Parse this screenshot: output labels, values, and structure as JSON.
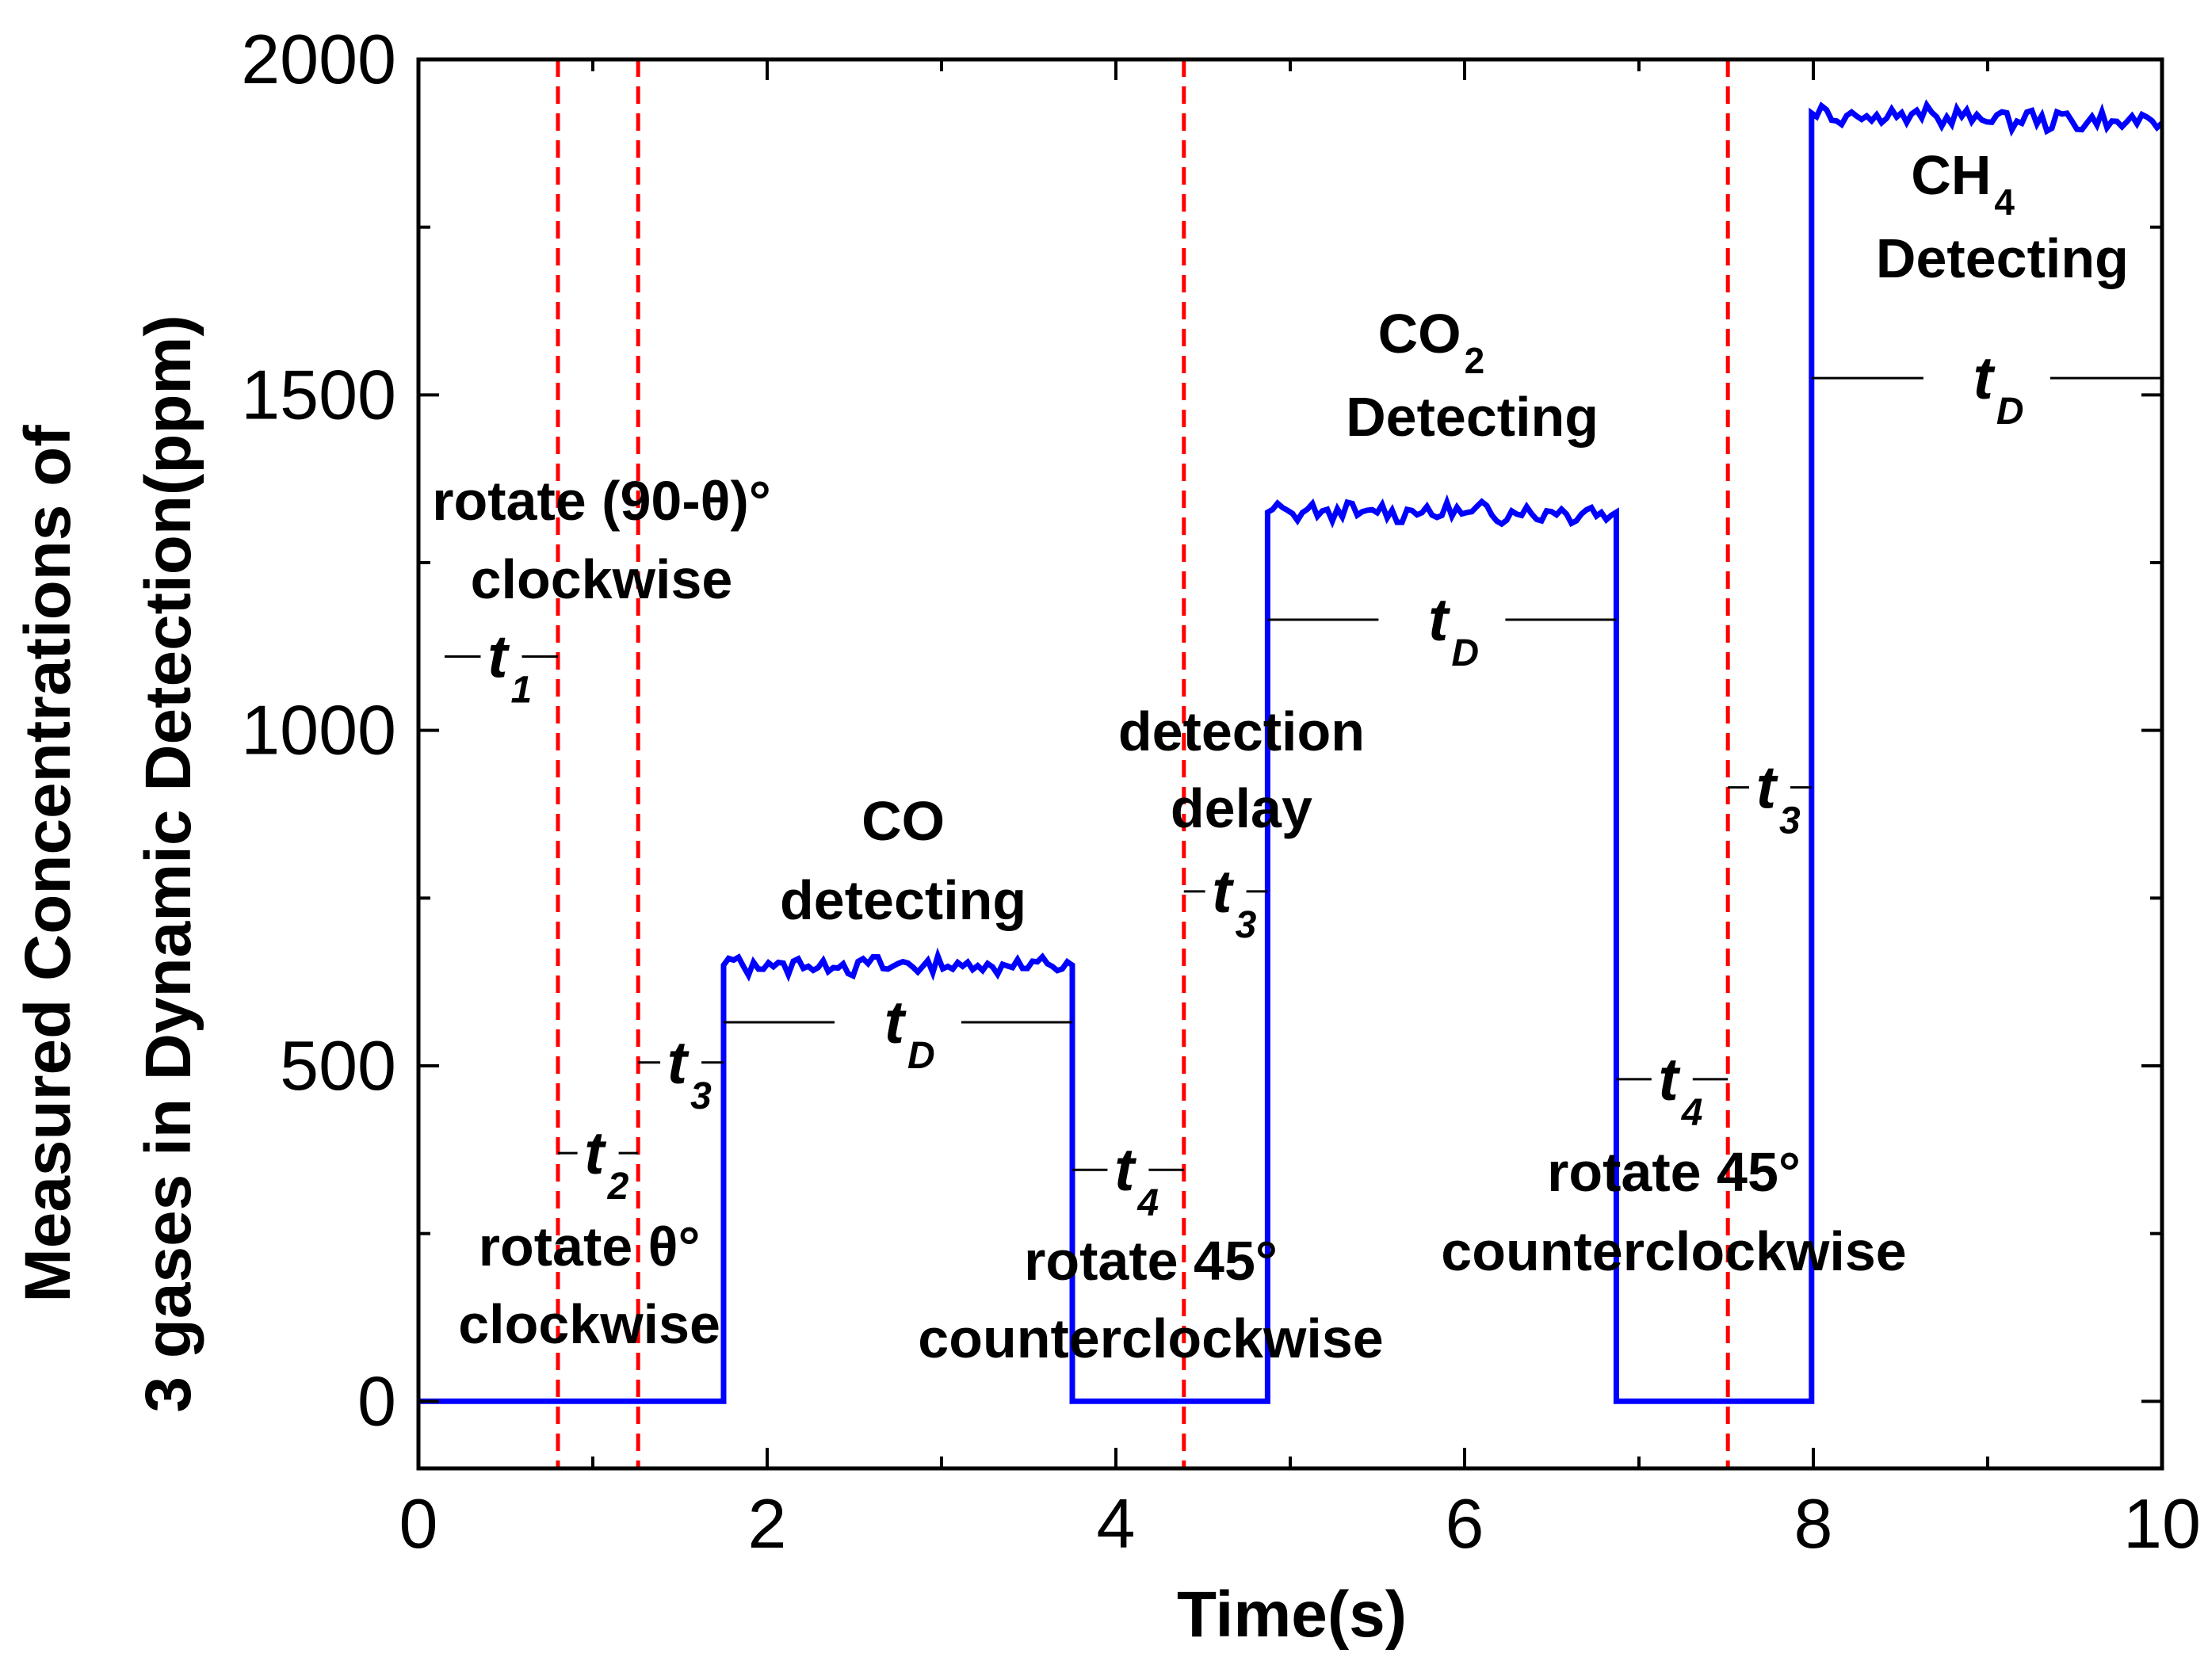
{
  "chart_data": {
    "type": "line",
    "title": "",
    "xlabel": "Time(s)",
    "ylabel_line1": "Measured Concentrations of",
    "ylabel_line2": "3 gases in Dynamic Detection(ppm)",
    "xlim": [
      0,
      10
    ],
    "ylim": [
      -100,
      2000
    ],
    "x_ticks": [
      0,
      2,
      4,
      6,
      8,
      10
    ],
    "x_tick_labels": [
      "0",
      "2",
      "4",
      "6",
      "8",
      "10"
    ],
    "y_ticks": [
      0,
      500,
      1000,
      1500,
      2000
    ],
    "y_tick_labels": [
      "0",
      "500",
      "1000",
      "1500",
      "2000"
    ],
    "x_minor_ticks": [
      1,
      3,
      5,
      7,
      9
    ],
    "y_minor_ticks": [
      250,
      750,
      1250,
      1750
    ],
    "grid": false,
    "series": [
      {
        "name": "Measured concentration",
        "color": "#0000ff",
        "x": [
          0,
          1.75,
          1.75,
          3.75,
          3.75,
          4.87,
          4.87,
          6.87,
          6.87,
          7.99,
          7.99,
          10
        ],
        "y": [
          0,
          0,
          650,
          650,
          0,
          0,
          1325,
          1325,
          0,
          0,
          1920,
          1905
        ],
        "plateau_noise_ppm": 12
      }
    ],
    "vlines": {
      "color": "#ff0000",
      "style": "dashed",
      "x": [
        0.8,
        1.26,
        4.39,
        7.51
      ]
    },
    "annotations": {
      "rotate_90": {
        "line1": "rotate (90-θ)°",
        "line2": "clockwise"
      },
      "rotate_theta": {
        "line1": "rotate θ°",
        "line2": "clockwise"
      },
      "co": {
        "line1": "CO",
        "line2": "detecting"
      },
      "detection_delay": {
        "line1": "detection",
        "line2": "delay"
      },
      "rotate_45_a": {
        "line1": "rotate 45°",
        "line2": "counterclockwise"
      },
      "co2": {
        "line1": "CO",
        "sub": "2",
        "line2": "Detecting"
      },
      "rotate_45_b": {
        "line1": "rotate 45°",
        "line2": "counterclockwise"
      },
      "ch4": {
        "line1": "CH",
        "sub": "4",
        "line2": "Detecting"
      }
    },
    "interval_labels": [
      {
        "symbol": "t",
        "sub": "1",
        "x_from": 0.15,
        "x_to": 0.8,
        "y": 1110
      },
      {
        "symbol": "t",
        "sub": "2",
        "x_from": 0.8,
        "x_to": 1.26,
        "y": 370
      },
      {
        "symbol": "t",
        "sub": "3",
        "x_from": 1.26,
        "x_to": 1.75,
        "y": 505
      },
      {
        "symbol": "t",
        "sub": "D",
        "x_from": 1.75,
        "x_to": 3.75,
        "y": 565
      },
      {
        "symbol": "t",
        "sub": "4",
        "x_from": 3.75,
        "x_to": 4.39,
        "y": 345
      },
      {
        "symbol": "t",
        "sub": "3",
        "x_from": 4.39,
        "x_to": 4.87,
        "y": 760
      },
      {
        "symbol": "t",
        "sub": "D",
        "x_from": 4.87,
        "x_to": 6.87,
        "y": 1165
      },
      {
        "symbol": "t",
        "sub": "4",
        "x_from": 6.87,
        "x_to": 7.51,
        "y": 480
      },
      {
        "symbol": "t",
        "sub": "3",
        "x_from": 7.51,
        "x_to": 7.99,
        "y": 915
      },
      {
        "symbol": "t",
        "sub": "D",
        "x_from": 7.99,
        "x_to": 10,
        "y": 1525
      }
    ]
  }
}
